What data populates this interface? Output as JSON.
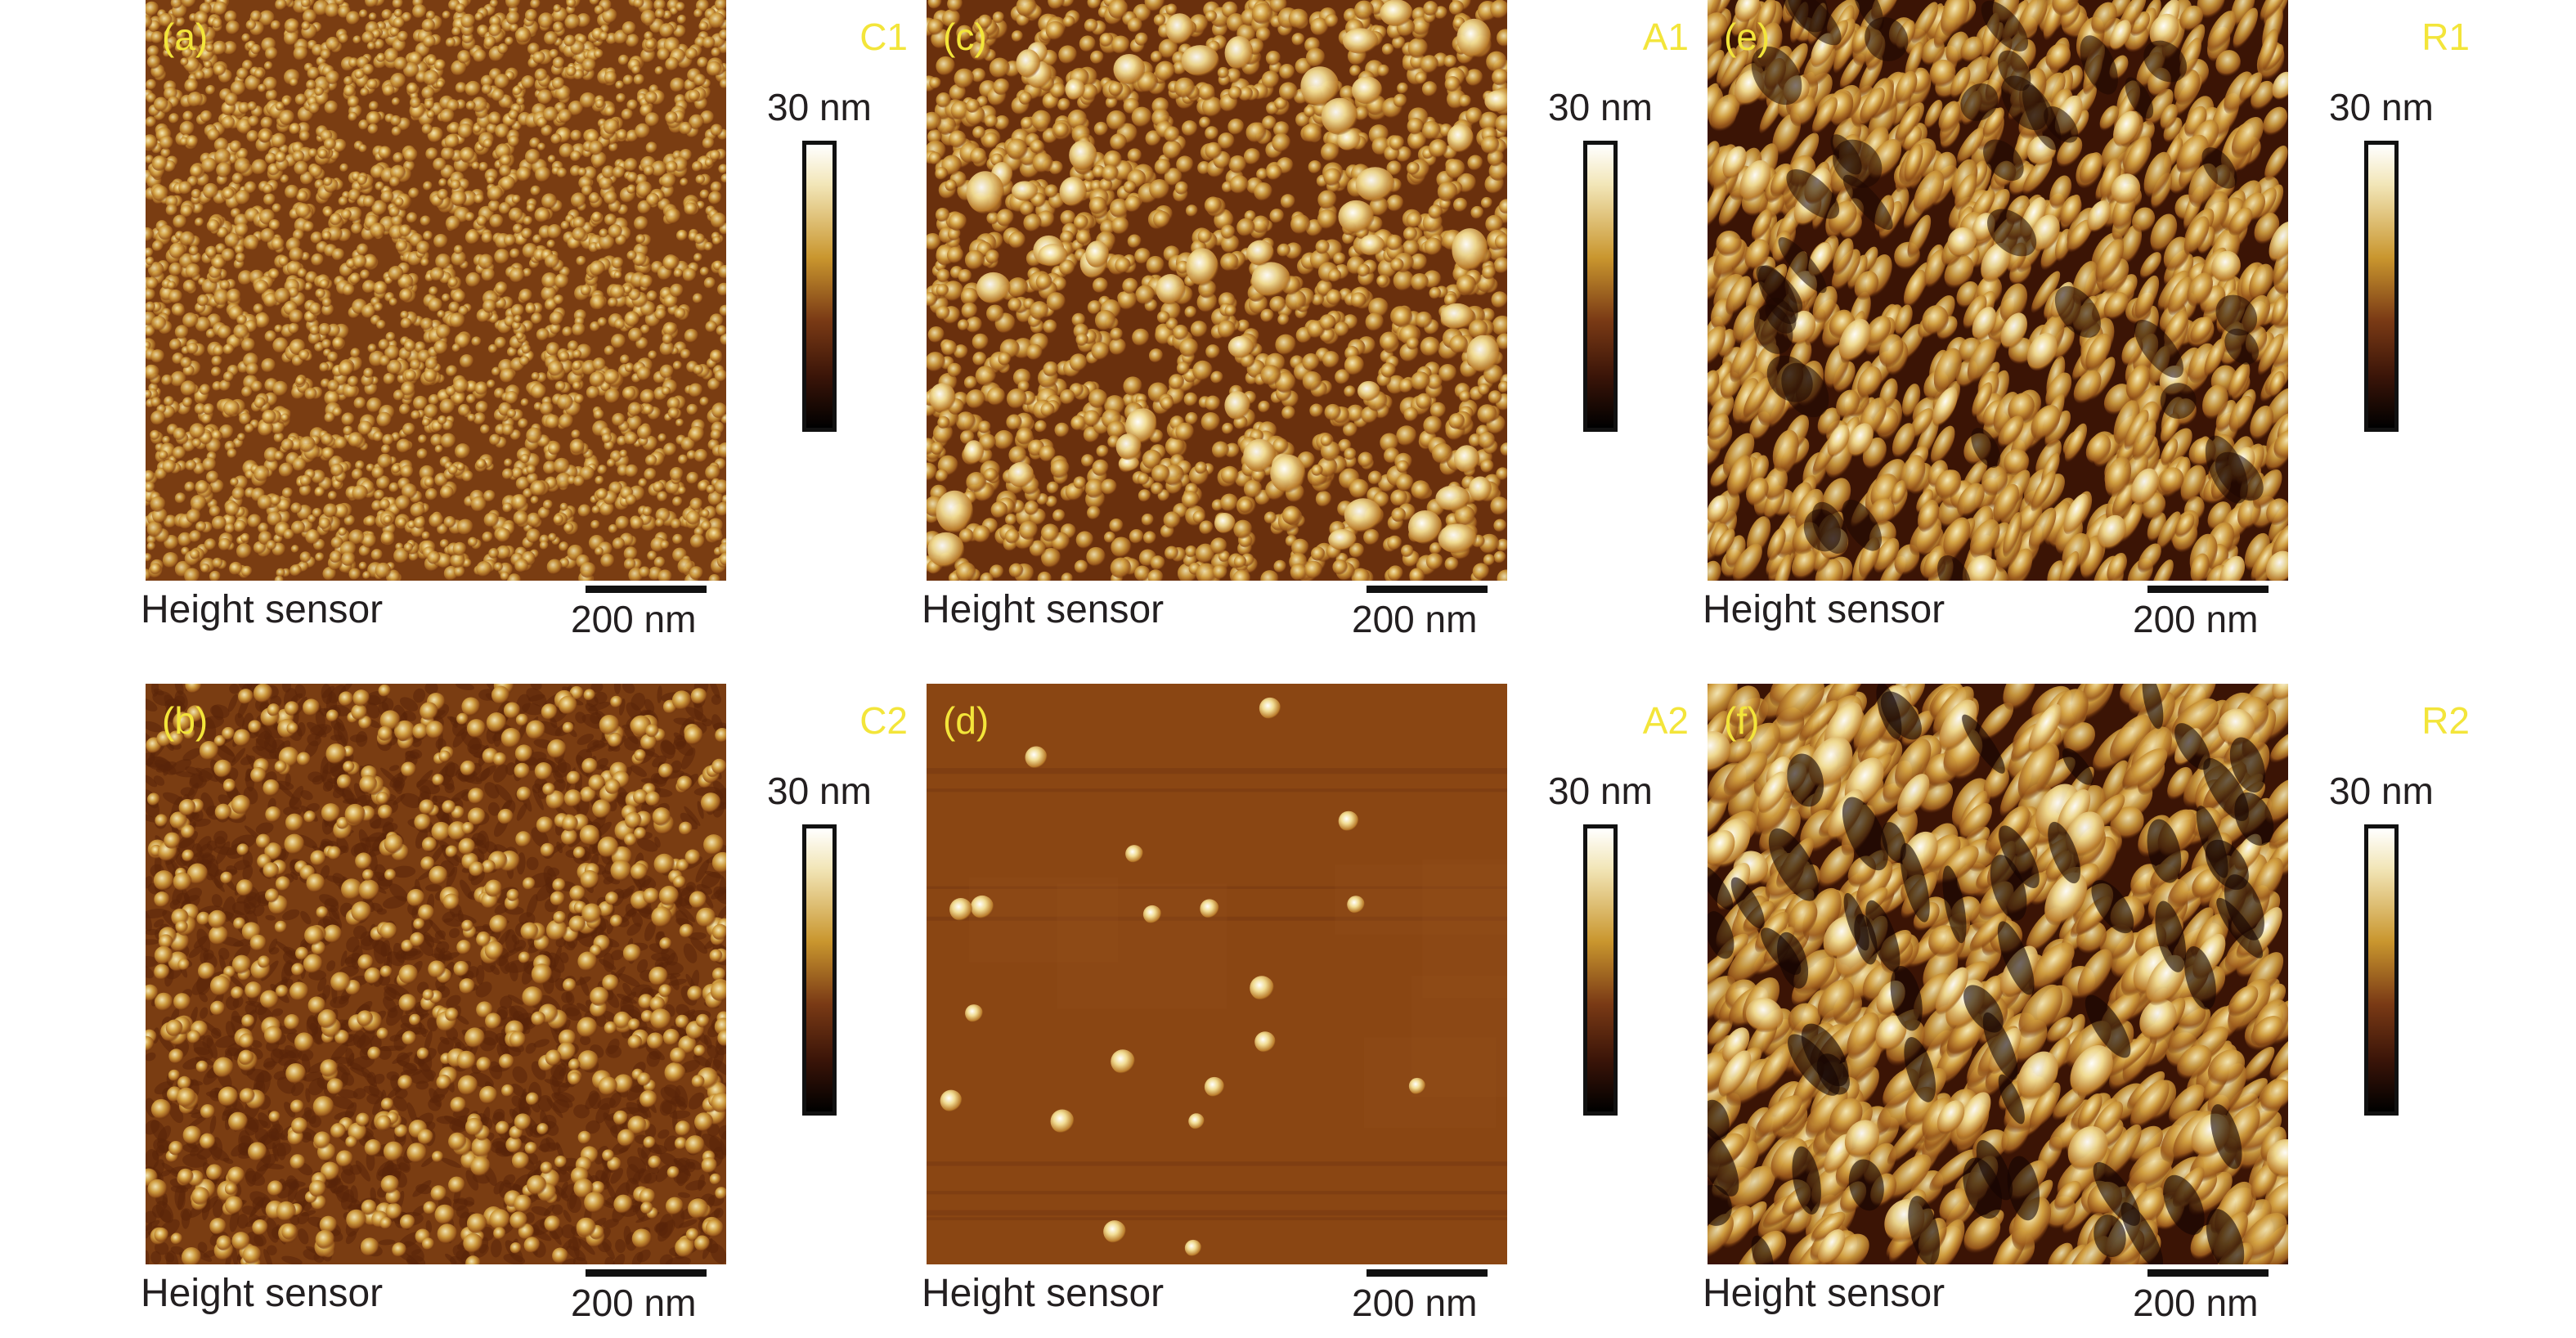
{
  "panels": [
    {
      "letter": "(a)",
      "sample": "C1",
      "sensor": "Height sensor",
      "scalebar": "200 nm",
      "colorbar_max": "30 nm",
      "texture": "fine-grain"
    },
    {
      "letter": "(c)",
      "sample": "A1",
      "sensor": "Height sensor",
      "scalebar": "200 nm",
      "colorbar_max": "30 nm",
      "texture": "medium-grain-with-clusters"
    },
    {
      "letter": "(e)",
      "sample": "R1",
      "sensor": "Height sensor",
      "scalebar": "200 nm",
      "colorbar_max": "30 nm",
      "texture": "elongated-grains"
    },
    {
      "letter": "(b)",
      "sample": "C2",
      "sensor": "Height sensor",
      "scalebar": "200 nm",
      "colorbar_max": "30 nm",
      "texture": "scattered-dots-rough"
    },
    {
      "letter": "(d)",
      "sample": "A2",
      "sensor": "Height sensor",
      "scalebar": "200 nm",
      "colorbar_max": "30 nm",
      "texture": "smooth-with-sparse-particles"
    },
    {
      "letter": "(f)",
      "sample": "R2",
      "sensor": "Height sensor",
      "scalebar": "200 nm",
      "colorbar_max": "30 nm",
      "texture": "rough-elongated-grains"
    }
  ],
  "colors": {
    "label_yellow": "#f3e53a",
    "afm_base": "#7a3d12",
    "afm_highlight": "#f4e7ae",
    "afm_shadow": "#2a0c03"
  }
}
